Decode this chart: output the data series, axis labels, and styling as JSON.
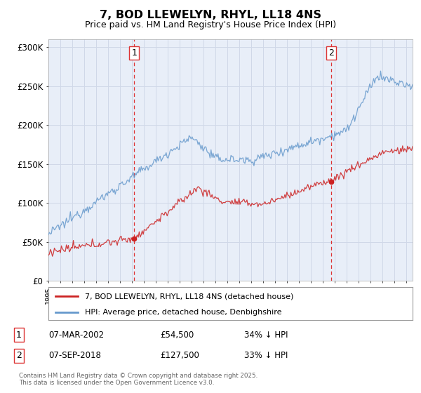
{
  "title": "7, BOD LLEWELYN, RHYL, LL18 4NS",
  "subtitle": "Price paid vs. HM Land Registry's House Price Index (HPI)",
  "ylim": [
    0,
    310000
  ],
  "yticks": [
    0,
    50000,
    100000,
    150000,
    200000,
    250000,
    300000
  ],
  "ytick_labels": [
    "£0",
    "£50K",
    "£100K",
    "£150K",
    "£200K",
    "£250K",
    "£300K"
  ],
  "background_color": "#ffffff",
  "grid_color": "#d0d8e8",
  "plot_bg_color": "#e8eef8",
  "line_color_hpi": "#6699cc",
  "line_color_price": "#cc2222",
  "vline_color": "#dd3333",
  "transaction1_x": 2002.18,
  "transaction1_y": 54500,
  "transaction1_label": "1",
  "transaction2_x": 2018.67,
  "transaction2_y": 127500,
  "transaction2_label": "2",
  "legend_price_label": "7, BOD LLEWELYN, RHYL, LL18 4NS (detached house)",
  "legend_hpi_label": "HPI: Average price, detached house, Denbighshire",
  "annotation1_date": "07-MAR-2002",
  "annotation1_price": "£54,500",
  "annotation1_hpi": "34% ↓ HPI",
  "annotation2_date": "07-SEP-2018",
  "annotation2_price": "£127,500",
  "annotation2_hpi": "33% ↓ HPI",
  "footnote": "Contains HM Land Registry data © Crown copyright and database right 2025.\nThis data is licensed under the Open Government Licence v3.0.",
  "xmin": 1995,
  "xmax": 2025.5
}
